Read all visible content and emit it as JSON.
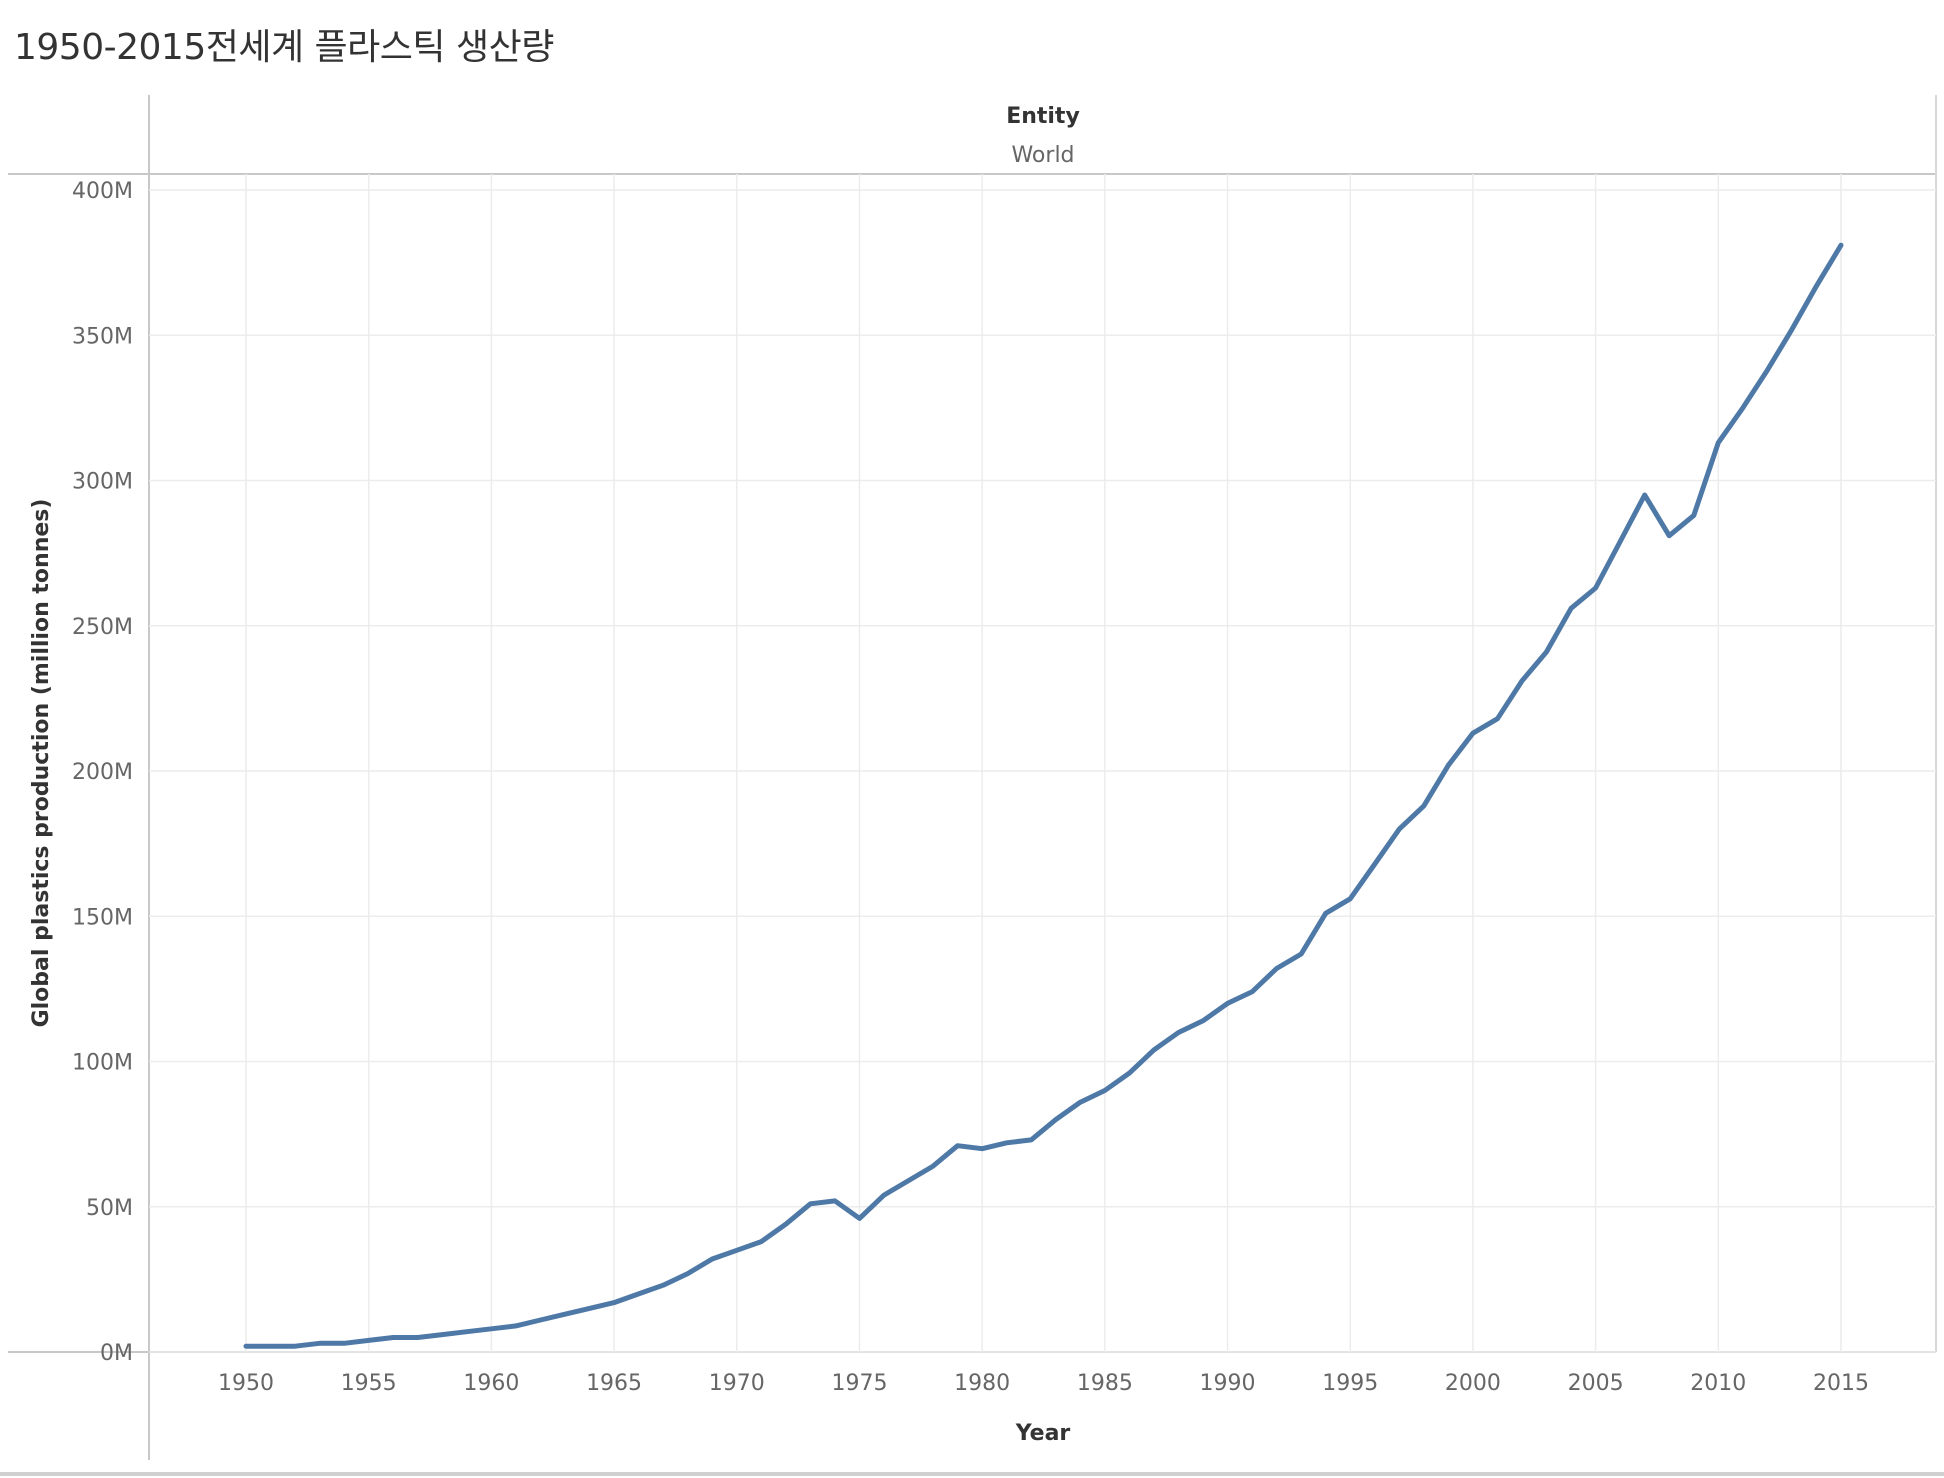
{
  "title": "1950-2015전세계 플라스틱 생산량",
  "header": {
    "field": "Entity",
    "value": "World"
  },
  "chart_data": {
    "type": "line",
    "xlabel": "Year",
    "ylabel": "Global plastics production (million tonnes)",
    "xlim": [
      1946,
      2018
    ],
    "ylim": [
      0,
      400000000
    ],
    "x_ticks": [
      "1950",
      "1955",
      "1960",
      "1965",
      "1970",
      "1975",
      "1980",
      "1985",
      "1990",
      "1995",
      "2000",
      "2005",
      "2010",
      "2015"
    ],
    "y_ticks": [
      "0M",
      "50M",
      "100M",
      "150M",
      "200M",
      "250M",
      "300M",
      "350M",
      "400M"
    ],
    "y_tick_values": [
      0,
      50000000,
      100000000,
      150000000,
      200000000,
      250000000,
      300000000,
      350000000,
      400000000
    ],
    "grid": true,
    "series": [
      {
        "color": "#4e79a7",
        "x": [
          1950,
          1951,
          1952,
          1953,
          1954,
          1955,
          1956,
          1957,
          1958,
          1959,
          1960,
          1961,
          1962,
          1963,
          1964,
          1965,
          1966,
          1967,
          1968,
          1969,
          1970,
          1971,
          1972,
          1973,
          1974,
          1975,
          1976,
          1977,
          1978,
          1979,
          1980,
          1981,
          1982,
          1983,
          1984,
          1985,
          1986,
          1987,
          1988,
          1989,
          1990,
          1991,
          1992,
          1993,
          1994,
          1995,
          1996,
          1997,
          1998,
          1999,
          2000,
          2001,
          2002,
          2003,
          2004,
          2005,
          2006,
          2007,
          2008,
          2009,
          2010,
          2011,
          2012,
          2013,
          2014,
          2015
        ],
        "values": [
          2000000,
          2000000,
          2000000,
          3000000,
          3000000,
          4000000,
          5000000,
          5000000,
          6000000,
          7000000,
          8000000,
          9000000,
          11000000,
          13000000,
          15000000,
          17000000,
          20000000,
          23000000,
          27000000,
          32000000,
          35000000,
          38000000,
          44000000,
          51000000,
          52000000,
          46000000,
          54000000,
          59000000,
          64000000,
          71000000,
          70000000,
          72000000,
          73000000,
          80000000,
          86000000,
          90000000,
          96000000,
          104000000,
          110000000,
          114000000,
          120000000,
          124000000,
          132000000,
          137000000,
          151000000,
          156000000,
          168000000,
          180000000,
          188000000,
          202000000,
          213000000,
          218000000,
          231000000,
          241000000,
          256000000,
          263000000,
          279000000,
          295000000,
          281000000,
          288000000,
          313000000,
          325000000,
          338000000,
          352000000,
          367000000,
          381000000
        ]
      }
    ]
  }
}
